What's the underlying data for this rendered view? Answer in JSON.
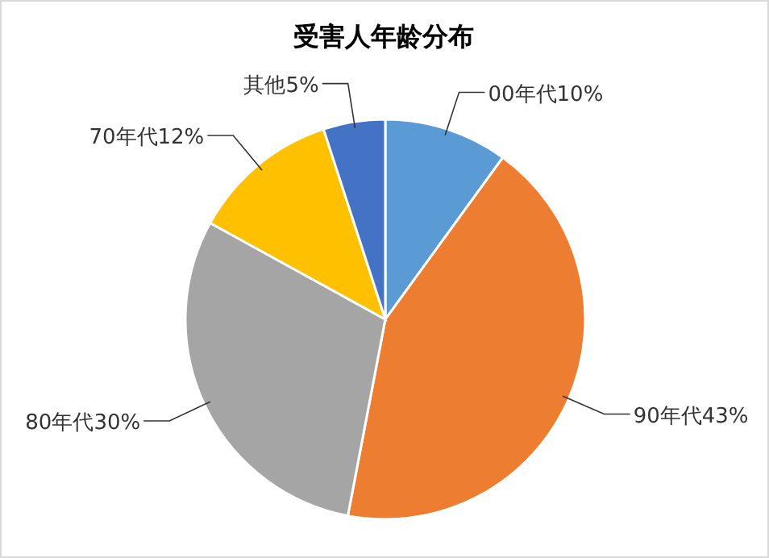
{
  "chart_data": {
    "type": "pie",
    "title": "受害人年龄分布",
    "categories": [
      "00年代",
      "90年代",
      "80年代",
      "70年代",
      "其他"
    ],
    "values": [
      10,
      43,
      30,
      12,
      5
    ],
    "value_labels": [
      "10%",
      "43%",
      "30%",
      "12%",
      "5%"
    ],
    "colors": [
      "#5b9bd5",
      "#ed7d31",
      "#a5a5a5",
      "#ffc000",
      "#4472c4"
    ]
  }
}
